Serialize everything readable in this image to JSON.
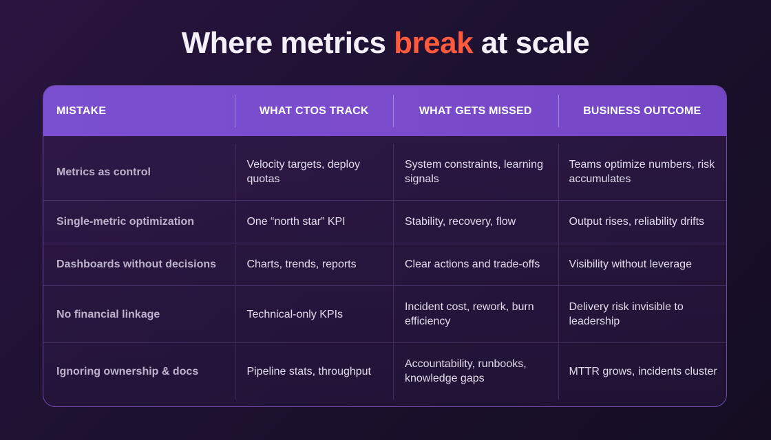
{
  "title": {
    "before": "Where metrics ",
    "accent": "break",
    "after": " at scale"
  },
  "colors": {
    "accent": "#ff5a3c",
    "header": "#7a4ccc"
  },
  "table": {
    "headers": [
      "MISTAKE",
      "WHAT CTOS TRACK",
      "WHAT GETS MISSED",
      "BUSINESS OUTCOME"
    ],
    "rows": [
      [
        "Metrics as control",
        "Velocity targets, deploy quotas",
        "System constraints, learning signals",
        "Teams optimize numbers, risk accumulates"
      ],
      [
        "Single-metric optimization",
        "One “north star” KPI",
        "Stability, recovery, flow",
        "Output rises, reliability drifts"
      ],
      [
        "Dashboards without decisions",
        "Charts, trends, reports",
        "Clear actions and trade-offs",
        "Visibility without leverage"
      ],
      [
        "No financial linkage",
        "Technical-only KPIs",
        "Incident cost, rework, burn efficiency",
        "Delivery risk invisible to leadership"
      ],
      [
        "Ignoring ownership & docs",
        "Pipeline stats, throughput",
        "Accountability, runbooks, knowledge gaps",
        "MTTR grows, incidents cluster"
      ]
    ]
  }
}
